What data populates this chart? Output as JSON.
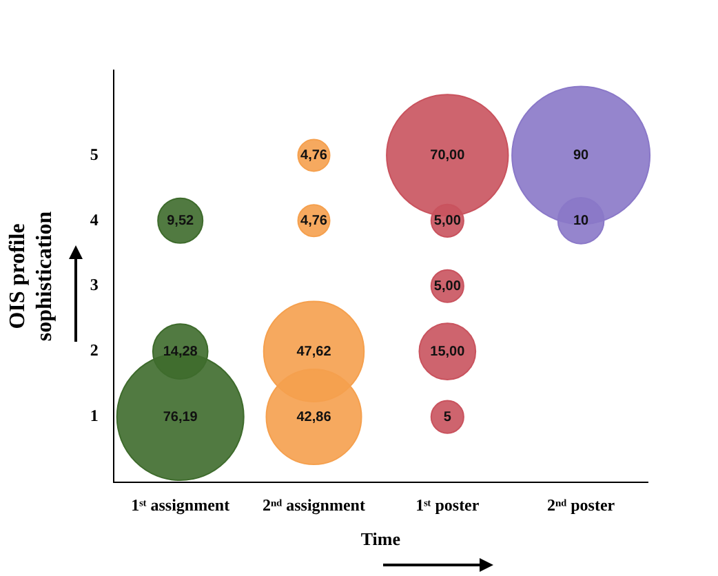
{
  "chart_data": {
    "type": "bubble",
    "xlabel": "Time",
    "ylabel": "OIS profile\nsophistication",
    "categories": [
      "1ˢᵗ assignment",
      "2ⁿᵈ assignment",
      "1ˢᵗ poster",
      "2ⁿᵈ poster"
    ],
    "ylim": [
      0,
      6.3
    ],
    "yticks": [
      1,
      2,
      3,
      4,
      5
    ],
    "grid": false,
    "legend": false,
    "series": [
      {
        "color": "#3e6b2c",
        "x": [
          "1ˢᵗ assignment",
          "1ˢᵗ assignment",
          "1ˢᵗ assignment"
        ],
        "values": [
          4,
          2,
          1
        ],
        "sizes": [
          9.52,
          14.28,
          76.19
        ],
        "value_labels": [
          "9,52",
          "14,28",
          "76,19"
        ]
      },
      {
        "color": "#f5a04e",
        "x": [
          "2ⁿᵈ assignment",
          "2ⁿᵈ assignment",
          "2ⁿᵈ assignment",
          "2ⁿᵈ assignment"
        ],
        "values": [
          5,
          4,
          2,
          1
        ],
        "sizes": [
          4.76,
          4.76,
          47.62,
          42.86
        ],
        "value_labels": [
          "4,76",
          "4,76",
          "47,62",
          "42,86"
        ]
      },
      {
        "color": "#c9535e",
        "x": [
          "1ˢᵗ poster",
          "1ˢᵗ poster",
          "1ˢᵗ poster",
          "1ˢᵗ poster",
          "1ˢᵗ poster"
        ],
        "values": [
          5,
          4,
          3,
          2,
          1
        ],
        "sizes": [
          70,
          5,
          5,
          15,
          5
        ],
        "value_labels": [
          "70,00",
          "5,00",
          "5,00",
          "15,00",
          "5"
        ]
      },
      {
        "color": "#8a78c8",
        "x": [
          "2ⁿᵈ poster",
          "2ⁿᵈ poster"
        ],
        "values": [
          5,
          4
        ],
        "sizes": [
          90,
          10
        ],
        "value_labels": [
          "90",
          "10"
        ]
      }
    ]
  }
}
